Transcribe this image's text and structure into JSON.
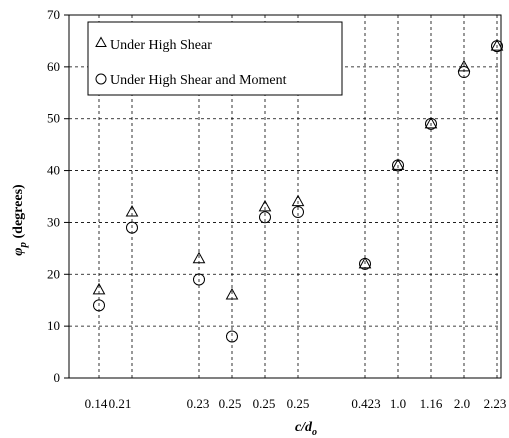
{
  "chart_data": {
    "type": "scatter",
    "title": "",
    "xlabel": "c/d",
    "xlabel_sub": "o",
    "ylabel": "φ",
    "ylabel_sub": "p",
    "ylabel_unit": "(degrees)",
    "ylim": [
      0,
      70
    ],
    "yticks": [
      0,
      10,
      20,
      30,
      40,
      50,
      60,
      70
    ],
    "grid": true,
    "legend_position": "top-left",
    "categories": [
      "0.14",
      "0.21",
      "0.23",
      "0.25",
      "0.25",
      "0.25",
      "0.423",
      "1.0",
      "1.16",
      "2.0",
      "2.23"
    ],
    "series": [
      {
        "name": "Under High Shear",
        "marker": "triangle",
        "x": [
          "0.14",
          "0.21",
          "0.23",
          "0.25",
          "0.25",
          "0.25",
          "0.423",
          "1.0",
          "1.16",
          "2.0",
          "2.23"
        ],
        "values": [
          17,
          32,
          23,
          16,
          33,
          34,
          22,
          41,
          49,
          60,
          64
        ]
      },
      {
        "name": "Under High Shear and Moment",
        "marker": "circle",
        "x": [
          "0.14",
          "0.21",
          "0.23",
          "0.25",
          "0.25",
          "0.25",
          "0.423",
          "1.0",
          "1.16",
          "2.0",
          "2.23"
        ],
        "values": [
          14,
          29,
          19,
          8,
          31,
          32,
          22,
          41,
          49,
          59,
          64
        ]
      }
    ]
  }
}
